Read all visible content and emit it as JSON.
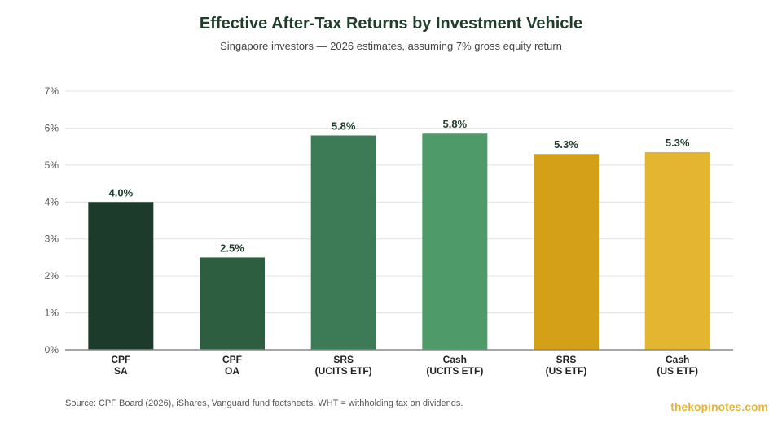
{
  "title": "Effective After-Tax Returns by Investment Vehicle",
  "subtitle": "Singapore investors — 2026 estimates, assuming 7% gross equity return",
  "footer": {
    "source": "Source: CPF Board (2026), iShares, Vanguard fund factsheets. WHT = withholding tax on dividends.",
    "brand": "thekopinotes.com"
  },
  "colors": {
    "title": "#1e3d2b",
    "brand": "#e3b53a",
    "grid": "#e2e2e2",
    "axis": "#888888"
  },
  "chart_data": {
    "type": "bar",
    "categories": [
      [
        "CPF",
        "SA"
      ],
      [
        "CPF",
        "OA"
      ],
      [
        "SRS",
        "(UCITS ETF)"
      ],
      [
        "Cash",
        "(UCITS ETF)"
      ],
      [
        "SRS",
        "(US ETF)"
      ],
      [
        "Cash",
        "(US ETF)"
      ]
    ],
    "values": [
      4.0,
      2.5,
      5.8,
      5.85,
      5.3,
      5.35
    ],
    "data_labels": [
      "4.0%",
      "2.5%",
      "5.8%",
      "5.8%",
      "5.3%",
      "5.3%"
    ],
    "bar_colors": [
      "#1d3b2b",
      "#2e5e40",
      "#3c7b55",
      "#4e9a68",
      "#d4a017",
      "#e3b530"
    ],
    "ylim": [
      0,
      7
    ],
    "yticks": [
      {
        "value": 0,
        "label": "0%"
      },
      {
        "value": 1,
        "label": "1%"
      },
      {
        "value": 2,
        "label": "2%"
      },
      {
        "value": 3,
        "label": "3%"
      },
      {
        "value": 4,
        "label": "4%"
      },
      {
        "value": 5,
        "label": "5%"
      },
      {
        "value": 6,
        "label": "6%"
      },
      {
        "value": 7,
        "label": "7%"
      }
    ],
    "grid": true,
    "legend": "none",
    "xlabel": "",
    "ylabel": ""
  }
}
